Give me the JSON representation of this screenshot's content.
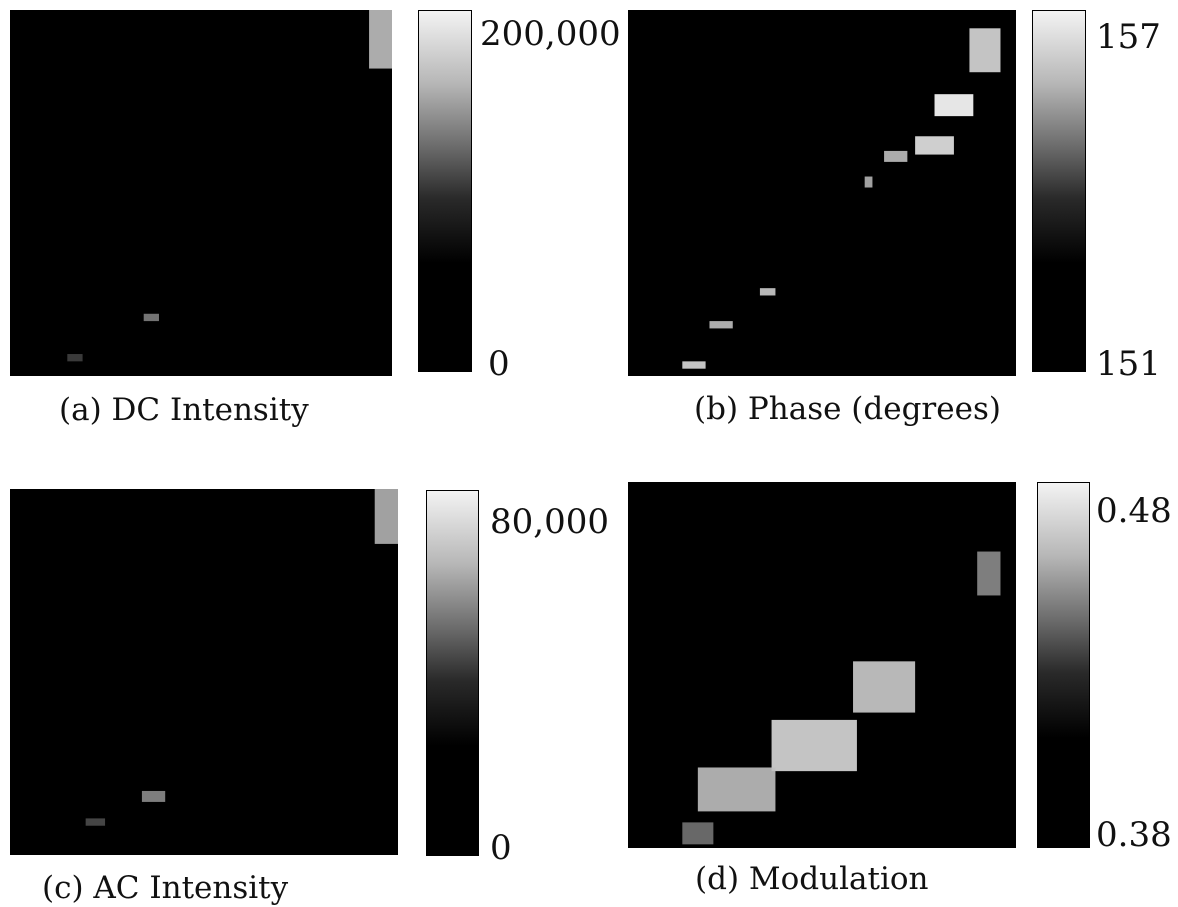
{
  "chart_data": [
    {
      "type": "heatmap",
      "title": "(a) DC Intensity",
      "colorbar": {
        "min_label": "0",
        "max_label": "200,000",
        "min": 0,
        "max": 200000
      },
      "hotspots": [
        {
          "x": 0.97,
          "y": 0.05,
          "w": 0.06,
          "h": 0.22,
          "v": 0.75
        },
        {
          "x": 0.37,
          "y": 0.84,
          "w": 0.04,
          "h": 0.02,
          "v": 0.5
        },
        {
          "x": 0.17,
          "y": 0.95,
          "w": 0.04,
          "h": 0.02,
          "v": 0.25
        }
      ]
    },
    {
      "type": "heatmap",
      "title": "(b) Phase (degrees)",
      "colorbar": {
        "min_label": "151",
        "max_label": "157",
        "min": 151,
        "max": 157
      },
      "hotspots": [
        {
          "x": 0.92,
          "y": 0.11,
          "w": 0.08,
          "h": 0.12,
          "v": 0.85
        },
        {
          "x": 0.84,
          "y": 0.26,
          "w": 0.1,
          "h": 0.06,
          "v": 1
        },
        {
          "x": 0.79,
          "y": 0.37,
          "w": 0.1,
          "h": 0.05,
          "v": 0.9
        },
        {
          "x": 0.69,
          "y": 0.4,
          "w": 0.06,
          "h": 0.03,
          "v": 0.75
        },
        {
          "x": 0.62,
          "y": 0.47,
          "w": 0.02,
          "h": 0.03,
          "v": 0.7
        },
        {
          "x": 0.36,
          "y": 0.77,
          "w": 0.04,
          "h": 0.02,
          "v": 0.8
        },
        {
          "x": 0.24,
          "y": 0.86,
          "w": 0.06,
          "h": 0.02,
          "v": 0.75
        },
        {
          "x": 0.17,
          "y": 0.97,
          "w": 0.06,
          "h": 0.02,
          "v": 0.85
        }
      ]
    },
    {
      "type": "heatmap",
      "title": "(c) AC Intensity",
      "colorbar": {
        "min_label": "0",
        "max_label": "80,000",
        "min": 0,
        "max": 80000
      },
      "hotspots": [
        {
          "x": 0.97,
          "y": 0.05,
          "w": 0.06,
          "h": 0.2,
          "v": 0.7
        },
        {
          "x": 0.37,
          "y": 0.84,
          "w": 0.06,
          "h": 0.03,
          "v": 0.55
        },
        {
          "x": 0.22,
          "y": 0.91,
          "w": 0.05,
          "h": 0.02,
          "v": 0.3
        }
      ]
    },
    {
      "type": "heatmap",
      "title": "(d) Modulation",
      "colorbar": {
        "min_label": "0.38",
        "max_label": "0.48",
        "min": 0.38,
        "max": 0.48
      },
      "hotspots": [
        {
          "x": 0.93,
          "y": 0.25,
          "w": 0.06,
          "h": 0.12,
          "v": 0.55
        },
        {
          "x": 0.66,
          "y": 0.56,
          "w": 0.16,
          "h": 0.14,
          "v": 0.8
        },
        {
          "x": 0.48,
          "y": 0.72,
          "w": 0.22,
          "h": 0.14,
          "v": 0.85
        },
        {
          "x": 0.28,
          "y": 0.84,
          "w": 0.2,
          "h": 0.12,
          "v": 0.75
        },
        {
          "x": 0.18,
          "y": 0.96,
          "w": 0.08,
          "h": 0.06,
          "v": 0.45
        }
      ]
    }
  ]
}
